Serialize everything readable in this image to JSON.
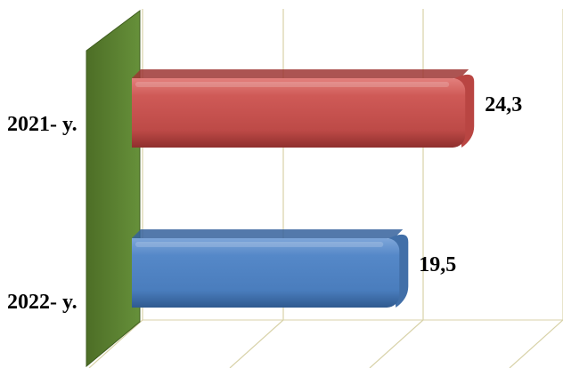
{
  "chart_data": {
    "type": "bar",
    "orientation": "horizontal",
    "style": "3d-cylinder",
    "categories": [
      "2021- y.",
      "2022- y."
    ],
    "values": [
      24.3,
      19.5
    ],
    "value_labels": [
      "24,3",
      "19,5"
    ],
    "bar_colors": [
      "#c0504d",
      "#4f81bd"
    ],
    "wall_color": "#5a7f2e",
    "grid": true,
    "legend": "none",
    "xlim": [
      0,
      30
    ]
  }
}
